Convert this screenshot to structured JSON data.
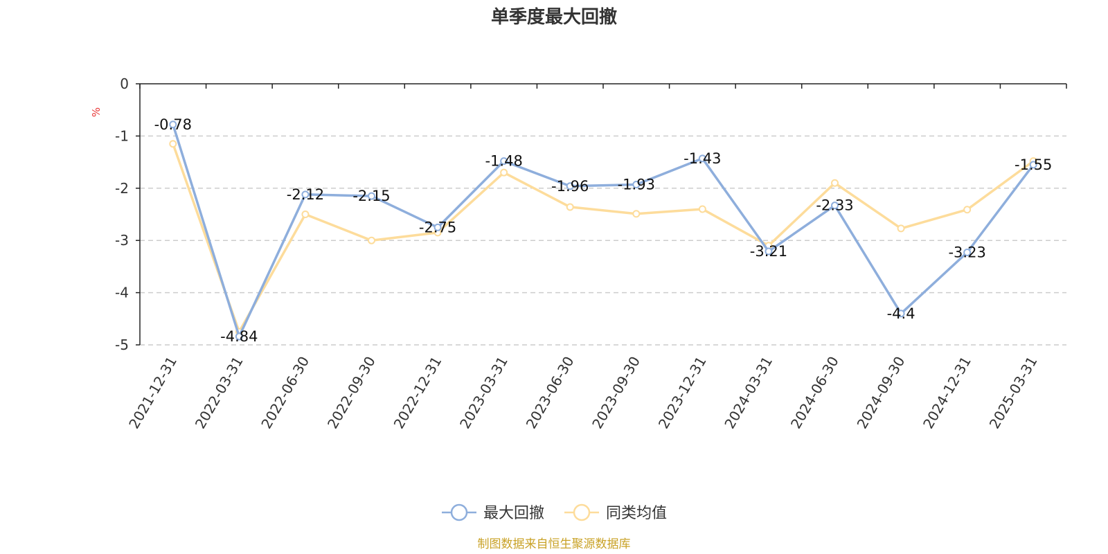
{
  "colors": {
    "series_max_drawdown": "#8eaedc",
    "series_peer_avg": "#fddc9b",
    "axis": "#222222",
    "grid": "#cccccc",
    "unit": "#e83535",
    "source": "#c9a227"
  },
  "legend_icon": "circle-line-icon",
  "source_note": "制图数据来自恒生聚源数据库",
  "chart_data": {
    "type": "line",
    "title": "单季度最大回撤",
    "ylabel": "%",
    "xlabel": "",
    "ylim": [
      -5,
      0
    ],
    "yticks": [
      0,
      -1,
      -2,
      -3,
      -4,
      -5
    ],
    "grid": true,
    "legend_position": "bottom",
    "categories": [
      "2021-12-31",
      "2022-03-31",
      "2022-06-30",
      "2022-09-30",
      "2022-12-31",
      "2023-03-31",
      "2023-06-30",
      "2023-09-30",
      "2023-12-31",
      "2024-03-31",
      "2024-06-30",
      "2024-09-30",
      "2024-12-31",
      "2025-03-31"
    ],
    "series": [
      {
        "name": "最大回撤",
        "values": [
          -0.78,
          -4.84,
          -2.12,
          -2.15,
          -2.75,
          -1.48,
          -1.96,
          -1.93,
          -1.43,
          -3.21,
          -2.33,
          -4.4,
          -3.23,
          -1.55
        ],
        "labels": [
          "-0.78",
          "-4.84",
          "-2.12",
          "-2.15",
          "-2.75",
          "-1.48",
          "-1.96",
          "-1.93",
          "-1.43",
          "-3.21",
          "-2.33",
          "-4.4",
          "-3.23",
          "-1.55"
        ]
      },
      {
        "name": "同类均值",
        "values": [
          -1.15,
          -4.75,
          -2.5,
          -3.0,
          -2.85,
          -1.7,
          -2.36,
          -2.49,
          -2.4,
          -3.1,
          -1.9,
          -2.77,
          -2.41,
          -1.48
        ]
      }
    ]
  }
}
